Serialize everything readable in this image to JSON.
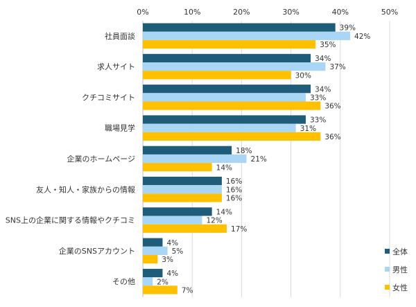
{
  "chart_data": {
    "type": "bar",
    "orientation": "horizontal",
    "title": "",
    "xlabel": "",
    "ylabel": "",
    "xlim": [
      0,
      50
    ],
    "x_ticks": [
      "0%",
      "10%",
      "20%",
      "30%",
      "40%",
      "50%"
    ],
    "x_tick_values": [
      0,
      10,
      20,
      30,
      40,
      50
    ],
    "grid": true,
    "legend_position": "bottom-right",
    "categories": [
      "社員面談",
      "求人サイト",
      "クチコミサイト",
      "職場見学",
      "企業のホームページ",
      "友人・知人・家族からの情報",
      "SNS上の企業に関する情報やクチコミ",
      "企業のSNSアカウント",
      "その他"
    ],
    "series": [
      {
        "name": "全体",
        "color": "#1f5c7a",
        "values": [
          39,
          34,
          34,
          33,
          18,
          16,
          14,
          4,
          4
        ]
      },
      {
        "name": "男性",
        "color": "#a9d6f5",
        "values": [
          42,
          37,
          33,
          31,
          21,
          16,
          12,
          5,
          2
        ]
      },
      {
        "name": "女性",
        "color": "#ffc000",
        "values": [
          35,
          30,
          36,
          36,
          14,
          16,
          17,
          3,
          7
        ]
      }
    ],
    "value_suffix": "%"
  }
}
